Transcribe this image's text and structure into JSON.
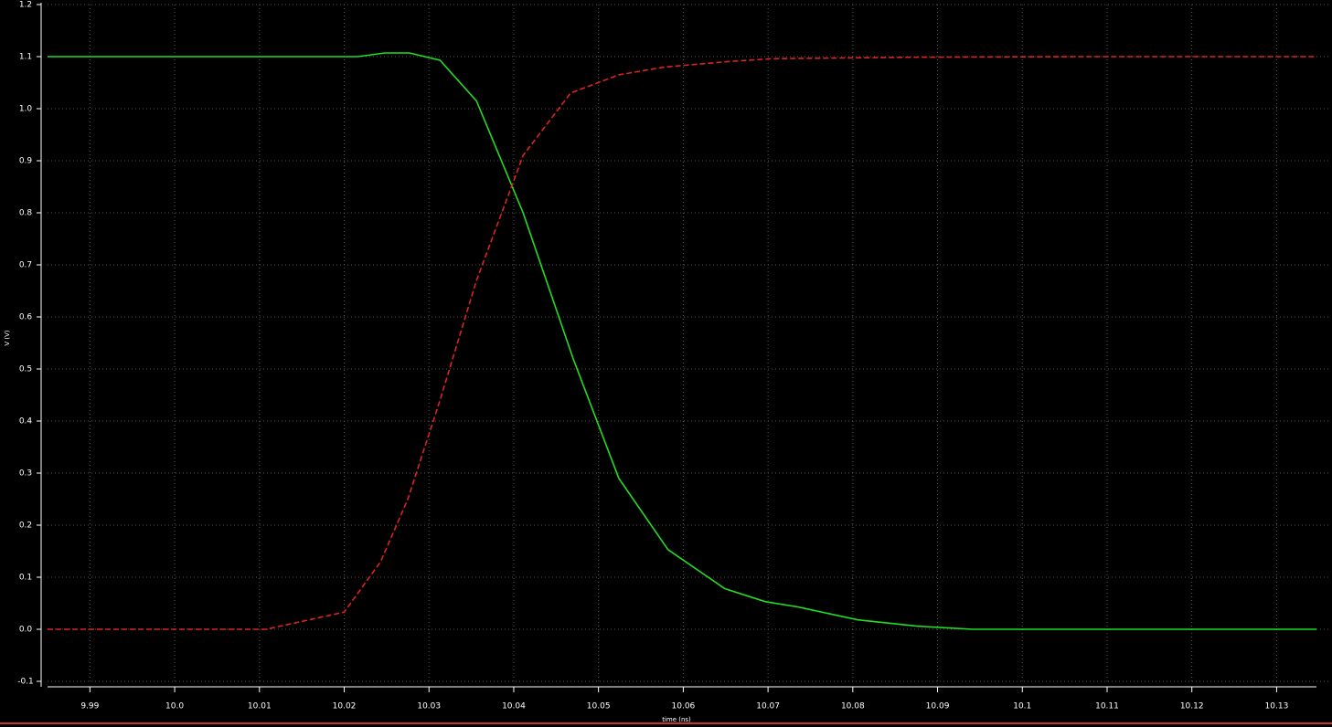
{
  "chart_data": {
    "type": "line",
    "background": "#000000",
    "y_label": "V (V)",
    "x_label": "time (ns)",
    "xlim": [
      9.985,
      10.1347
    ],
    "ylim": [
      -0.1,
      1.2
    ],
    "xticks": [
      9.99,
      {
        "value": 10.0,
        "label": "10.0"
      },
      10.01,
      10.02,
      10.03,
      10.04,
      10.05,
      10.06,
      10.07,
      10.08,
      10.09,
      10.1,
      10.11,
      10.12,
      10.13
    ],
    "yticks": [
      -0.1,
      {
        "value": 0.0,
        "label": "0.0"
      },
      0.1,
      0.2,
      0.3,
      0.4,
      0.5,
      0.6,
      0.7,
      0.8,
      0.9,
      {
        "value": 1.0,
        "label": "1.0"
      },
      1.1,
      1.2
    ],
    "grid": true,
    "series": [
      {
        "color": "#22dd22",
        "dashed": false,
        "x": [
          9.985,
          10.0216,
          10.0248,
          10.0277,
          10.0313,
          10.0356,
          10.0411,
          10.047,
          10.0524,
          10.0582,
          10.0649,
          10.0697,
          10.0735,
          10.0806,
          10.0876,
          10.0941,
          10.1347
        ],
        "values": [
          1.1,
          1.1,
          1.107,
          1.107,
          1.093,
          1.015,
          0.8,
          0.52,
          0.29,
          0.153,
          0.078,
          0.053,
          0.043,
          0.018,
          0.006,
          0.0,
          0.0
        ]
      },
      {
        "color": "#dd2222",
        "dashed": true,
        "x": [
          9.985,
          10.0108,
          10.02,
          10.0243,
          10.0275,
          10.0313,
          10.0356,
          10.0411,
          10.0467,
          10.0524,
          10.0578,
          10.0649,
          10.0703,
          10.0876,
          10.106,
          10.1347
        ],
        "values": [
          0.0,
          0.0,
          0.033,
          0.13,
          0.25,
          0.44,
          0.67,
          0.91,
          1.03,
          1.065,
          1.08,
          1.09,
          1.096,
          1.099,
          1.1,
          1.1
        ]
      }
    ]
  }
}
